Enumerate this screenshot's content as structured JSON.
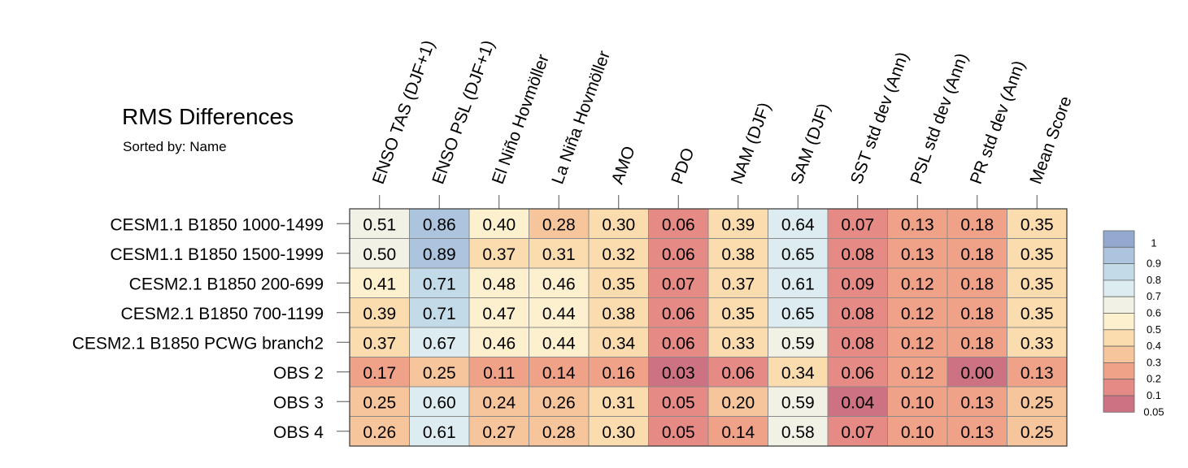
{
  "chart_data": {
    "type": "heatmap",
    "title": "RMS Differences",
    "subtitle": "Sorted by: Name",
    "columns": [
      "ENSO TAS (DJF+1)",
      "ENSO PSL (DJF+1)",
      "El Niño Hovmöller",
      "La Niña Hovmöller",
      "AMO",
      "PDO",
      "NAM (DJF)",
      "SAM (DJF)",
      "SST std dev (Ann)",
      "PSL std dev (Ann)",
      "PR std dev (Ann)",
      "Mean Score"
    ],
    "rows": [
      "CESM1.1 B1850 1000-1499",
      "CESM1.1 B1850 1500-1999",
      "CESM2.1 B1850 200-699",
      "CESM2.1 B1850 700-1199",
      "CESM2.1 B1850 PCWG branch2",
      "OBS 2",
      "OBS 3",
      "OBS 4"
    ],
    "values": [
      [
        "0.51",
        "0.86",
        "0.40",
        "0.28",
        "0.30",
        "0.06",
        "0.39",
        "0.64",
        "0.07",
        "0.13",
        "0.18",
        "0.35"
      ],
      [
        "0.50",
        "0.89",
        "0.37",
        "0.31",
        "0.32",
        "0.06",
        "0.38",
        "0.65",
        "0.08",
        "0.13",
        "0.18",
        "0.35"
      ],
      [
        "0.41",
        "0.71",
        "0.48",
        "0.46",
        "0.35",
        "0.07",
        "0.37",
        "0.61",
        "0.09",
        "0.12",
        "0.18",
        "0.35"
      ],
      [
        "0.39",
        "0.71",
        "0.47",
        "0.44",
        "0.38",
        "0.06",
        "0.35",
        "0.65",
        "0.08",
        "0.12",
        "0.18",
        "0.35"
      ],
      [
        "0.37",
        "0.67",
        "0.46",
        "0.44",
        "0.34",
        "0.06",
        "0.33",
        "0.59",
        "0.08",
        "0.12",
        "0.18",
        "0.33"
      ],
      [
        "0.17",
        "0.25",
        "0.11",
        "0.14",
        "0.16",
        "0.03",
        "0.06",
        "0.34",
        "0.06",
        "0.12",
        "0.00",
        "0.13"
      ],
      [
        "0.25",
        "0.60",
        "0.24",
        "0.26",
        "0.31",
        "0.05",
        "0.20",
        "0.59",
        "0.04",
        "0.10",
        "0.13",
        "0.25"
      ],
      [
        "0.26",
        "0.61",
        "0.27",
        "0.28",
        "0.30",
        "0.05",
        "0.14",
        "0.58",
        "0.07",
        "0.10",
        "0.13",
        "0.25"
      ]
    ],
    "colorbar": {
      "labels": [
        "1",
        "0.9",
        "0.8",
        "0.7",
        "0.6",
        "0.5",
        "0.4",
        "0.3",
        "0.2",
        "0.1",
        "0.05"
      ],
      "colors": [
        "#93a9cf",
        "#acc4dd",
        "#c3dbe8",
        "#dcecf1",
        "#f2f1e6",
        "#fdf0cf",
        "#fbdcae",
        "#f7c59c",
        "#efa288",
        "#e68a85",
        "#cd7283"
      ]
    }
  }
}
